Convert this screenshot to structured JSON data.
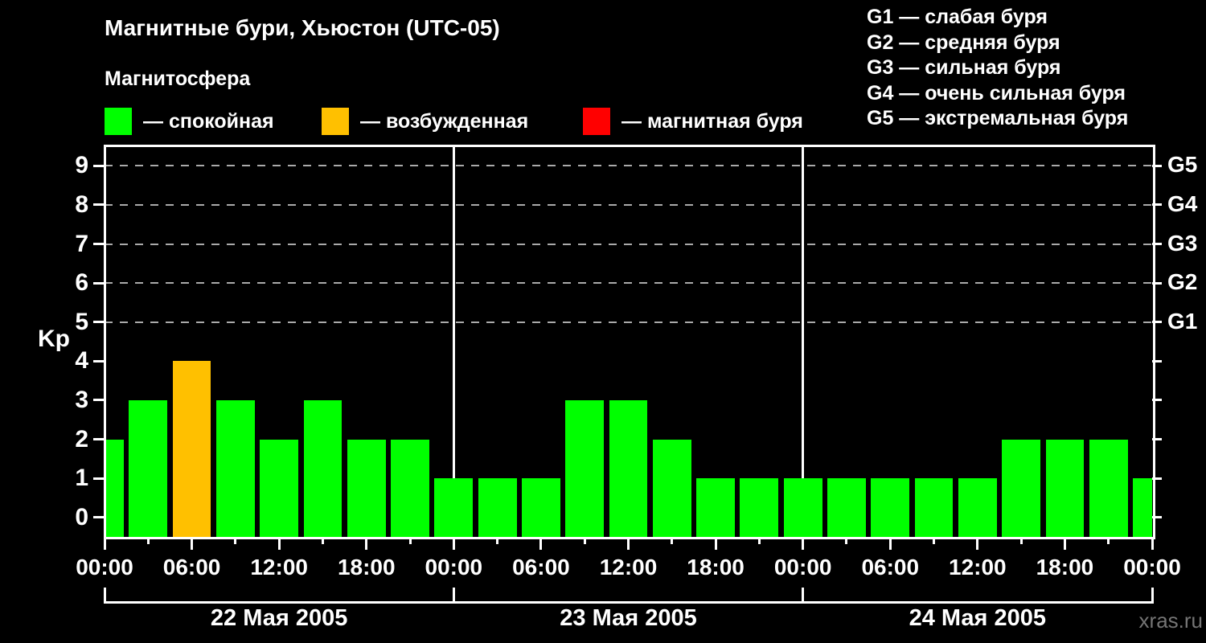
{
  "title": "Магнитные бури, Хьюстон (UTC-05)",
  "subtitle": "Магнитосфера",
  "legend": {
    "items": [
      {
        "state": "quiet",
        "label": "— спокойная",
        "color": "#00ff00"
      },
      {
        "state": "excited",
        "label": "— возбужденная",
        "color": "#ffc000"
      },
      {
        "state": "storm",
        "label": "— магнитная буря",
        "color": "#ff0000"
      }
    ]
  },
  "storm_scale_legend": [
    "G1 — слабая буря",
    "G2 — средняя буря",
    "G3 — сильная буря",
    "G4 — очень сильная буря",
    "G5 — экстремальная буря"
  ],
  "watermark": "xras.ru",
  "chart_data": {
    "type": "bar",
    "title": "Магнитные бури, Хьюстон (UTC-05)",
    "ylabel": "Kp",
    "ylim": [
      -0.5,
      9.5
    ],
    "yticks": [
      0,
      1,
      2,
      3,
      4,
      5,
      6,
      7,
      8,
      9
    ],
    "dashed_gridlines_at_kp": [
      5,
      6,
      7,
      8,
      9
    ],
    "right_axis": [
      {
        "kp": 5,
        "label": "G1"
      },
      {
        "kp": 6,
        "label": "G2"
      },
      {
        "kp": 7,
        "label": "G3"
      },
      {
        "kp": 8,
        "label": "G4"
      },
      {
        "kp": 9,
        "label": "G5"
      }
    ],
    "x_total_hours": 72,
    "interval_hours": 3,
    "minor_xtick_every_hours": 3,
    "xticks": [
      {
        "hour": 0,
        "label": "00:00"
      },
      {
        "hour": 6,
        "label": "06:00"
      },
      {
        "hour": 12,
        "label": "12:00"
      },
      {
        "hour": 18,
        "label": "18:00"
      },
      {
        "hour": 24,
        "label": "00:00"
      },
      {
        "hour": 30,
        "label": "06:00"
      },
      {
        "hour": 36,
        "label": "12:00"
      },
      {
        "hour": 42,
        "label": "18:00"
      },
      {
        "hour": 48,
        "label": "00:00"
      },
      {
        "hour": 54,
        "label": "06:00"
      },
      {
        "hour": 60,
        "label": "12:00"
      },
      {
        "hour": 66,
        "label": "18:00"
      },
      {
        "hour": 72,
        "label": "00:00"
      }
    ],
    "day_boundaries_hours": [
      0,
      24,
      48,
      72
    ],
    "days": [
      "22 Мая 2005",
      "23 Мая 2005",
      "24 Мая 2005"
    ],
    "bars": [
      {
        "start_hour": 0,
        "kp": 2,
        "state": "quiet"
      },
      {
        "start_hour": 3,
        "kp": 3,
        "state": "quiet"
      },
      {
        "start_hour": 6,
        "kp": 4,
        "state": "excited"
      },
      {
        "start_hour": 9,
        "kp": 3,
        "state": "quiet"
      },
      {
        "start_hour": 12,
        "kp": 2,
        "state": "quiet"
      },
      {
        "start_hour": 15,
        "kp": 3,
        "state": "quiet"
      },
      {
        "start_hour": 18,
        "kp": 2,
        "state": "quiet"
      },
      {
        "start_hour": 21,
        "kp": 2,
        "state": "quiet"
      },
      {
        "start_hour": 24,
        "kp": 1,
        "state": "quiet"
      },
      {
        "start_hour": 27,
        "kp": 1,
        "state": "quiet"
      },
      {
        "start_hour": 30,
        "kp": 1,
        "state": "quiet"
      },
      {
        "start_hour": 33,
        "kp": 3,
        "state": "quiet"
      },
      {
        "start_hour": 36,
        "kp": 3,
        "state": "quiet"
      },
      {
        "start_hour": 39,
        "kp": 2,
        "state": "quiet"
      },
      {
        "start_hour": 42,
        "kp": 1,
        "state": "quiet"
      },
      {
        "start_hour": 45,
        "kp": 1,
        "state": "quiet"
      },
      {
        "start_hour": 48,
        "kp": 1,
        "state": "quiet"
      },
      {
        "start_hour": 51,
        "kp": 1,
        "state": "quiet"
      },
      {
        "start_hour": 54,
        "kp": 1,
        "state": "quiet"
      },
      {
        "start_hour": 57,
        "kp": 1,
        "state": "quiet"
      },
      {
        "start_hour": 60,
        "kp": 1,
        "state": "quiet"
      },
      {
        "start_hour": 63,
        "kp": 2,
        "state": "quiet"
      },
      {
        "start_hour": 66,
        "kp": 2,
        "state": "quiet"
      },
      {
        "start_hour": 69,
        "kp": 2,
        "state": "quiet"
      },
      {
        "start_hour": 72,
        "kp": 1,
        "state": "quiet"
      }
    ],
    "state_colors": {
      "quiet": "#00ff00",
      "excited": "#ffc000",
      "storm": "#ff0000"
    },
    "colors": {
      "background": "#000000",
      "axis": "#ffffff",
      "grid": "#aaaaaa",
      "text": "#ffffff",
      "watermark": "#757575"
    },
    "legend_position": "top",
    "grid": "dashed horizontal at Kp 5-9 only"
  }
}
